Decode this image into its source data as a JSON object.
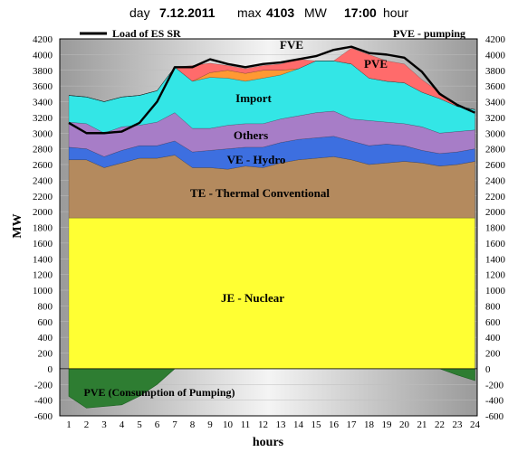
{
  "header": {
    "day_label": "day",
    "day_value": "7.12.2011",
    "max_label": "max",
    "max_value": "4103",
    "max_unit": "MW",
    "time_value": "17:00",
    "time_unit": "hour"
  },
  "colors": {
    "nuclear": "#ffff33",
    "thermal": "#b48a5e",
    "hydro": "#3d6fe0",
    "others": "#a77dc7",
    "import": "#33e6e6",
    "fve": "#ff9933",
    "pve": "#ff6b6b",
    "pumping": "#2e7d32",
    "load": "#000000"
  },
  "chart_data": {
    "type": "area",
    "xlabel": "hours",
    "ylabel": "MW",
    "ylim": [
      -600,
      4200
    ],
    "ytick_step": 200,
    "x": [
      1,
      2,
      3,
      4,
      5,
      6,
      7,
      8,
      9,
      10,
      11,
      12,
      13,
      14,
      15,
      16,
      17,
      18,
      19,
      20,
      21,
      22,
      23,
      24
    ],
    "legend_load": "Load of ES SR",
    "legend_pumping": "PVE - pumping",
    "series": [
      {
        "name": "JE - Nuclear",
        "key": "nuclear",
        "values": [
          1920,
          1920,
          1920,
          1920,
          1920,
          1920,
          1920,
          1920,
          1920,
          1920,
          1920,
          1920,
          1920,
          1920,
          1920,
          1920,
          1920,
          1920,
          1920,
          1920,
          1920,
          1920,
          1920,
          1920
        ]
      },
      {
        "name": "TE - Thermal Conventional",
        "key": "thermal",
        "values": [
          740,
          740,
          640,
          700,
          760,
          760,
          800,
          640,
          640,
          620,
          660,
          640,
          700,
          740,
          760,
          780,
          740,
          680,
          700,
          720,
          700,
          660,
          680,
          720
        ]
      },
      {
        "name": "VE - Hydro",
        "key": "hydro",
        "values": [
          160,
          140,
          140,
          160,
          160,
          160,
          180,
          200,
          220,
          260,
          240,
          260,
          260,
          260,
          260,
          260,
          240,
          240,
          240,
          200,
          160,
          160,
          160,
          160
        ]
      },
      {
        "name": "Others",
        "key": "others",
        "values": [
          320,
          320,
          300,
          300,
          260,
          300,
          360,
          300,
          280,
          300,
          300,
          300,
          300,
          300,
          320,
          320,
          280,
          320,
          280,
          280,
          300,
          260,
          260,
          240
        ]
      },
      {
        "name": "Import",
        "key": "import",
        "values": [
          340,
          340,
          400,
          380,
          380,
          400,
          580,
          600,
          650,
          600,
          540,
          580,
          560,
          600,
          660,
          640,
          700,
          540,
          520,
          520,
          440,
          440,
          320,
          260
        ]
      },
      {
        "name": "FVE",
        "key": "fve",
        "values": [
          0,
          0,
          0,
          0,
          0,
          0,
          0,
          0,
          60,
          100,
          100,
          100,
          60,
          0,
          0,
          0,
          0,
          0,
          0,
          0,
          0,
          0,
          0,
          0
        ]
      },
      {
        "name": "PVE",
        "key": "pve",
        "values": [
          0,
          0,
          0,
          0,
          0,
          0,
          0,
          200,
          120,
          60,
          60,
          60,
          80,
          120,
          0,
          0,
          200,
          300,
          260,
          240,
          160,
          80,
          0,
          0
        ]
      }
    ],
    "pumping": {
      "name": "PVE  (Consumption of Pumping)",
      "values": [
        -350,
        -500,
        -480,
        -460,
        -350,
        -200,
        0,
        0,
        0,
        0,
        0,
        0,
        0,
        0,
        0,
        0,
        0,
        0,
        0,
        0,
        0,
        0,
        -80,
        -150
      ]
    },
    "load": {
      "name": "Load of ES SR",
      "values": [
        3130,
        3000,
        3000,
        3020,
        3130,
        3400,
        3840,
        3840,
        3940,
        3880,
        3840,
        3880,
        3900,
        3940,
        3980,
        4060,
        4100,
        4020,
        4000,
        3960,
        3780,
        3500,
        3360,
        3260
      ]
    }
  }
}
